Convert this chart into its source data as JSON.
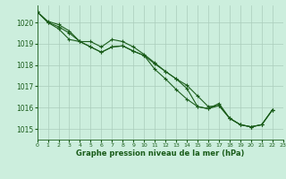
{
  "title": "Graphe pression niveau de la mer (hPa)",
  "bg_color": "#cceedd",
  "grid_color": "#aaccbb",
  "line_color": "#1a5c1a",
  "xlim": [
    0,
    23
  ],
  "ylim": [
    1014.5,
    1020.8
  ],
  "yticks": [
    1015,
    1016,
    1017,
    1018,
    1019,
    1020
  ],
  "xticks": [
    0,
    1,
    2,
    3,
    4,
    5,
    6,
    7,
    8,
    9,
    10,
    11,
    12,
    13,
    14,
    15,
    16,
    17,
    18,
    19,
    20,
    21,
    22,
    23
  ],
  "series1": [
    1020.5,
    1020.0,
    1019.8,
    1019.5,
    1019.1,
    1018.85,
    1018.6,
    1018.85,
    1018.9,
    1018.65,
    1018.45,
    1018.05,
    1017.7,
    1017.35,
    1016.9,
    1016.05,
    1015.95,
    1016.2,
    1015.5,
    1015.2,
    1015.1,
    1015.2,
    1015.9
  ],
  "series2": [
    1020.5,
    1020.0,
    1019.7,
    1019.2,
    1019.1,
    1019.1,
    1018.85,
    1019.2,
    1019.1,
    1018.85,
    1018.5,
    1018.1,
    1017.7,
    1017.35,
    1017.05,
    1016.55,
    1016.05,
    1016.1,
    1015.5,
    1015.2,
    1015.1,
    1015.2,
    1015.9
  ],
  "series3": [
    1020.5,
    1020.05,
    1019.9,
    1019.6,
    1019.1,
    1018.85,
    1018.6,
    1018.85,
    1018.9,
    1018.65,
    1018.45,
    1017.8,
    1017.35,
    1016.85,
    1016.4,
    1016.05,
    1015.95,
    1016.1,
    1015.5,
    1015.2,
    1015.1,
    1015.2,
    1015.9
  ]
}
